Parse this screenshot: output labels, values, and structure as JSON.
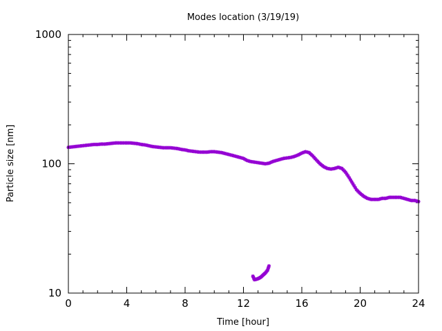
{
  "chart_data": {
    "type": "scatter",
    "title": "Modes location (3/19/19)",
    "xlabel": "Time [hour]",
    "ylabel": "Particle size [nm]",
    "xlim": [
      0,
      24
    ],
    "ylim": [
      10,
      1000
    ],
    "yscale": "log",
    "grid": false,
    "xticks": [
      0,
      4,
      8,
      12,
      16,
      20,
      24
    ],
    "xtick_labels": [
      "0",
      "4",
      "8",
      "12",
      "16",
      "20",
      "24"
    ],
    "yticks": [
      10,
      100,
      1000
    ],
    "ytick_labels": [
      "10",
      "100",
      "1000"
    ],
    "marker_color": "#9400d3",
    "series": [
      {
        "points": [
          [
            0.0,
            134
          ],
          [
            0.25,
            135
          ],
          [
            0.5,
            136
          ],
          [
            0.75,
            137
          ],
          [
            1.0,
            138
          ],
          [
            1.25,
            139
          ],
          [
            1.5,
            140
          ],
          [
            1.75,
            141
          ],
          [
            2.0,
            141
          ],
          [
            2.25,
            142
          ],
          [
            2.5,
            142
          ],
          [
            2.75,
            143
          ],
          [
            3.0,
            144
          ],
          [
            3.25,
            145
          ],
          [
            3.5,
            145
          ],
          [
            3.75,
            145
          ],
          [
            4.0,
            145
          ],
          [
            4.25,
            145
          ],
          [
            4.5,
            144
          ],
          [
            4.75,
            143
          ],
          [
            5.0,
            141
          ],
          [
            5.25,
            140
          ],
          [
            5.5,
            138
          ],
          [
            5.75,
            136
          ],
          [
            6.0,
            135
          ],
          [
            6.25,
            134
          ],
          [
            6.5,
            133
          ],
          [
            6.75,
            133
          ],
          [
            7.0,
            133
          ],
          [
            7.25,
            132
          ],
          [
            7.5,
            131
          ],
          [
            7.75,
            129
          ],
          [
            8.0,
            128
          ],
          [
            8.25,
            126
          ],
          [
            8.5,
            125
          ],
          [
            8.75,
            124
          ],
          [
            9.0,
            123
          ],
          [
            9.25,
            123
          ],
          [
            9.5,
            123
          ],
          [
            9.75,
            124
          ],
          [
            10.0,
            124
          ],
          [
            10.25,
            123
          ],
          [
            10.5,
            122
          ],
          [
            10.75,
            120
          ],
          [
            11.0,
            118
          ],
          [
            11.25,
            116
          ],
          [
            11.5,
            114
          ],
          [
            11.75,
            112
          ],
          [
            12.0,
            110
          ],
          [
            12.25,
            106
          ],
          [
            12.5,
            104
          ],
          [
            12.75,
            103
          ],
          [
            13.0,
            102
          ],
          [
            13.25,
            101
          ],
          [
            13.5,
            100
          ],
          [
            13.75,
            101
          ],
          [
            14.0,
            104
          ],
          [
            14.25,
            106
          ],
          [
            14.5,
            108
          ],
          [
            14.75,
            110
          ],
          [
            15.0,
            111
          ],
          [
            15.25,
            112
          ],
          [
            15.5,
            114
          ],
          [
            15.75,
            117
          ],
          [
            16.0,
            121
          ],
          [
            16.25,
            124
          ],
          [
            16.5,
            122
          ],
          [
            16.75,
            115
          ],
          [
            17.0,
            107
          ],
          [
            17.25,
            100
          ],
          [
            17.5,
            95
          ],
          [
            17.75,
            92
          ],
          [
            18.0,
            91
          ],
          [
            18.25,
            92
          ],
          [
            18.5,
            94
          ],
          [
            18.75,
            92
          ],
          [
            19.0,
            86
          ],
          [
            19.25,
            78
          ],
          [
            19.5,
            70
          ],
          [
            19.75,
            63
          ],
          [
            20.0,
            59
          ],
          [
            20.25,
            56
          ],
          [
            20.5,
            54
          ],
          [
            20.75,
            53
          ],
          [
            21.0,
            53
          ],
          [
            21.25,
            53
          ],
          [
            21.5,
            54
          ],
          [
            21.75,
            54
          ],
          [
            22.0,
            55
          ],
          [
            22.25,
            55
          ],
          [
            22.5,
            55
          ],
          [
            22.75,
            55
          ],
          [
            23.0,
            54
          ],
          [
            23.25,
            53
          ],
          [
            23.5,
            52
          ],
          [
            23.75,
            52
          ],
          [
            24.0,
            51
          ]
        ]
      },
      {
        "points": [
          [
            12.65,
            13.5
          ],
          [
            12.75,
            12.7
          ],
          [
            12.9,
            12.8
          ],
          [
            13.05,
            13.0
          ],
          [
            13.2,
            13.3
          ],
          [
            13.35,
            13.8
          ],
          [
            13.5,
            14.3
          ],
          [
            13.65,
            15.0
          ],
          [
            13.75,
            16.2
          ]
        ]
      }
    ]
  }
}
